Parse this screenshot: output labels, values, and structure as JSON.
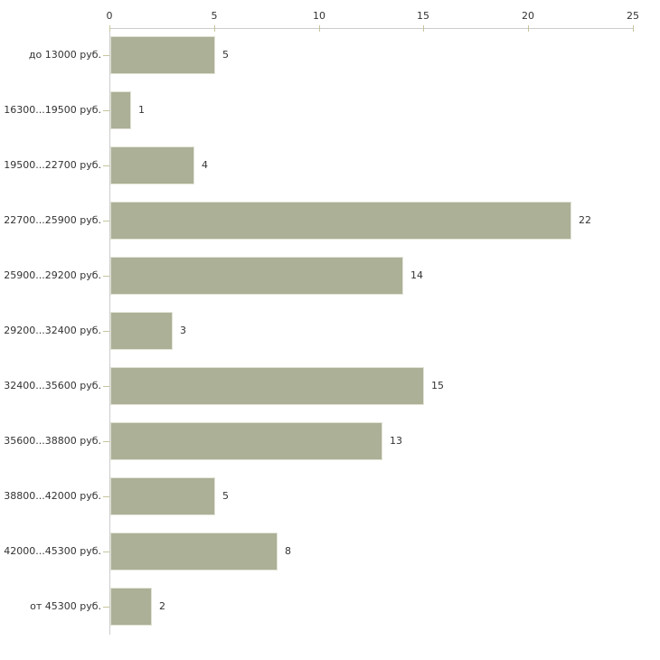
{
  "chart_data": {
    "type": "bar",
    "orientation": "horizontal",
    "title": "",
    "xlabel": "",
    "ylabel": "",
    "categories": [
      "до 13000 руб.",
      "16300...19500 руб.",
      "19500...22700 руб.",
      "22700...25900 руб.",
      "25900...29200 руб.",
      "29200...32400 руб.",
      "32400...35600 руб.",
      "35600...38800 руб.",
      "38800...42000 руб.",
      "42000...45300 руб.",
      "от 45300 руб."
    ],
    "values": [
      5,
      1,
      4,
      22,
      14,
      3,
      15,
      13,
      5,
      8,
      2
    ],
    "value_labels": [
      "5",
      "1",
      "4",
      "22",
      "14",
      "3",
      "15",
      "13",
      "5",
      "8",
      "2"
    ],
    "xlim": [
      0,
      25
    ],
    "x_ticks": [
      0,
      5,
      10,
      15,
      20,
      25
    ],
    "x_tick_labels": [
      "0",
      "5",
      "10",
      "15",
      "20",
      "25"
    ],
    "grid": false,
    "legend": false,
    "colors": {
      "bar_fill": "#abb096",
      "bar_border": "#e3e2d6",
      "axis_line": "#cccccc",
      "tick_mark": "#c6c49c",
      "text": "#333333"
    }
  }
}
